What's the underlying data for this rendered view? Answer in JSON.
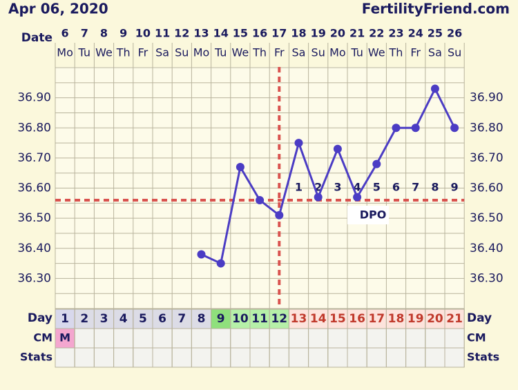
{
  "header": {
    "title": "Apr 06, 2020",
    "site": "FertilityFriend.com"
  },
  "chart_data": {
    "type": "line",
    "date_label": "Date",
    "categories": [
      "6",
      "7",
      "8",
      "9",
      "10",
      "11",
      "12",
      "13",
      "14",
      "15",
      "16",
      "17",
      "18",
      "19",
      "20",
      "21",
      "22",
      "23",
      "24",
      "25",
      "26"
    ],
    "weekdays": [
      "Mo",
      "Tu",
      "We",
      "Th",
      "Fr",
      "Sa",
      "Su",
      "Mo",
      "Tu",
      "We",
      "Th",
      "Fr",
      "Sa",
      "Su",
      "Mo",
      "Tu",
      "We",
      "Th",
      "Fr",
      "Sa",
      "Su"
    ],
    "values": [
      null,
      null,
      null,
      null,
      null,
      null,
      null,
      36.38,
      36.35,
      36.67,
      36.56,
      36.51,
      36.75,
      36.57,
      36.73,
      36.57,
      36.68,
      36.8,
      36.8,
      36.93,
      36.8
    ],
    "color": "#4b3cc4",
    "ylim": [
      36.2,
      37.0
    ],
    "yticks": [
      {
        "value": 36.3,
        "label": "36.30"
      },
      {
        "value": 36.4,
        "label": "36.40"
      },
      {
        "value": 36.5,
        "label": "36.50"
      },
      {
        "value": 36.6,
        "label": "36.60"
      },
      {
        "value": 36.7,
        "label": "36.70"
      },
      {
        "value": 36.8,
        "label": "36.80"
      },
      {
        "value": 36.9,
        "label": "36.90"
      }
    ],
    "grid": true,
    "coverline": 36.56,
    "ovulation_date": "17",
    "marker_color": "#d9534f",
    "dpo": [
      null,
      null,
      null,
      null,
      null,
      null,
      null,
      null,
      null,
      null,
      null,
      null,
      1,
      2,
      3,
      4,
      5,
      6,
      7,
      8,
      9
    ],
    "dpo_label": "DPO",
    "day_label": "Day",
    "cycle_days": [
      1,
      2,
      3,
      4,
      5,
      6,
      7,
      8,
      9,
      10,
      11,
      12,
      13,
      14,
      15,
      16,
      17,
      18,
      19,
      20,
      21
    ],
    "day_colors": [
      "#d8d8ec",
      "#dcdce6",
      "#dcdce6",
      "#dcdce6",
      "#dcdce6",
      "#dcdce6",
      "#dcdce6",
      "#dcdce6",
      "#8fe07c",
      "#b6f0a8",
      "#b6f0a8",
      "#b6f0a8",
      "#fde3dc",
      "#fde3dc",
      "#fde3dc",
      "#fde3dc",
      "#fde3dc",
      "#fde3dc",
      "#fde3dc",
      "#fde3dc",
      "#fde3dc"
    ],
    "day_text_colors": [
      "#1a1a5e",
      "#1a1a5e",
      "#1a1a5e",
      "#1a1a5e",
      "#1a1a5e",
      "#1a1a5e",
      "#1a1a5e",
      "#1a1a5e",
      "#1a1a5e",
      "#1a1a5e",
      "#1a1a5e",
      "#1a1a5e",
      "#c0392b",
      "#c0392b",
      "#c0392b",
      "#c0392b",
      "#c0392b",
      "#c0392b",
      "#c0392b",
      "#c0392b",
      "#c0392b"
    ],
    "cm_label": "CM",
    "cm": [
      "M",
      null,
      null,
      null,
      null,
      null,
      null,
      null,
      null,
      null,
      null,
      null,
      null,
      null,
      null,
      null,
      null,
      null,
      null,
      null,
      null
    ],
    "cm_color": "#f4a6cf",
    "stats_label": "Stats",
    "empty_cell_color": "#f3f3ef"
  }
}
